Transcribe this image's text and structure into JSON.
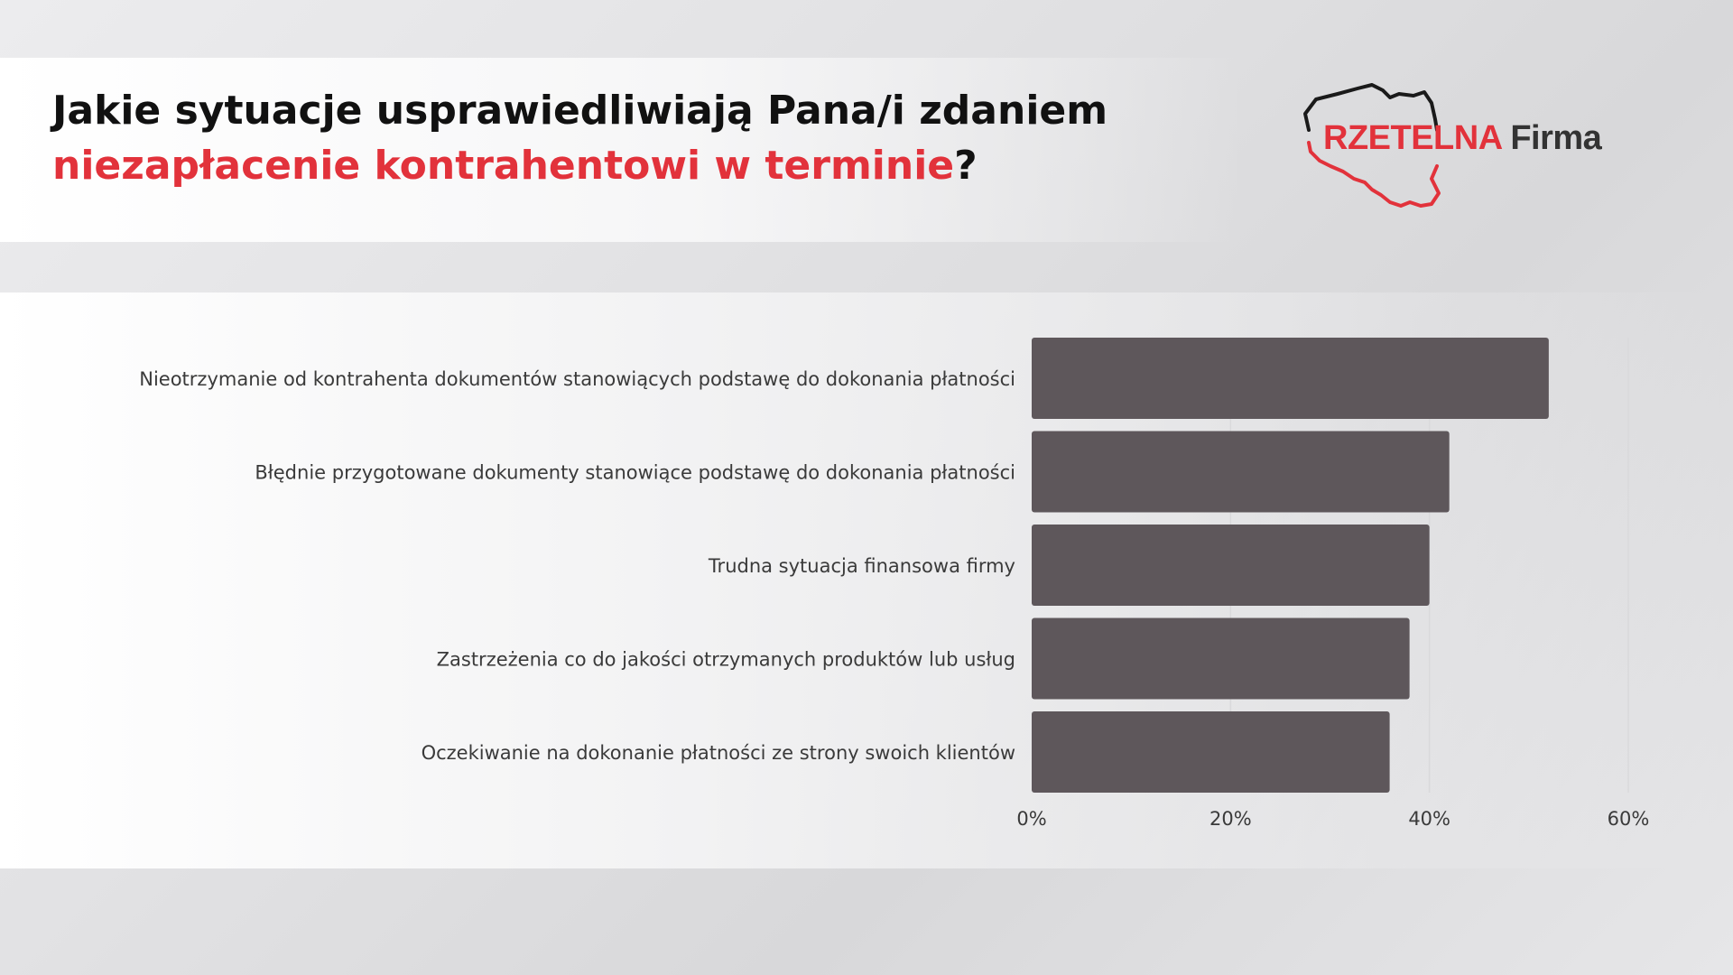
{
  "title": {
    "line1": "Jakie sytuacje usprawiedliwiają Pana/i zdaniem",
    "line2_accent": "niezapłacenie kontrahentowi w terminie",
    "line2_end": "?"
  },
  "logo": {
    "brand_red": "RZETELNA",
    "brand_dark": "Firma",
    "colors": {
      "red": "#e2323b",
      "dark": "#333333"
    }
  },
  "chart_data": {
    "type": "bar",
    "orientation": "horizontal",
    "categories": [
      "Nieotrzymanie od kontrahenta dokumentów stanowiących podstawę do dokonania płatności",
      "Błędnie przygotowane dokumenty stanowiące podstawę do dokonania płatności",
      "Trudna sytuacja finansowa firmy",
      "Zastrzeżenia co do jakości otrzymanych produktów lub usług",
      "Oczekiwanie na dokonanie płatności ze strony swoich klientów"
    ],
    "values": [
      52,
      42,
      40,
      38,
      36
    ],
    "xlim": [
      0,
      60
    ],
    "ticks": [
      0,
      20,
      40,
      60
    ],
    "tick_labels": [
      "0%",
      "20%",
      "40%",
      "60%"
    ],
    "grid": true,
    "bar_color": "#5e575b",
    "grid_color": "#d9d9db"
  }
}
